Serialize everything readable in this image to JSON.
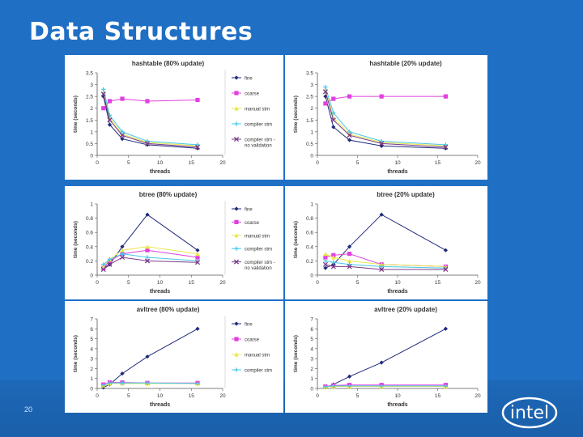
{
  "slide": {
    "title": "Data Structures",
    "number": "20",
    "logo_text": "intel"
  },
  "colors": {
    "background": "#1f6fc4",
    "fine": "#1f2a7a",
    "coarse": "#e040e0",
    "manual_stm": "#e8e84a",
    "compiler_stm": "#46c8e8",
    "compiler_stm_validation": "#7a3a8a"
  },
  "chart_data": [
    {
      "type": "line",
      "title": "hashtable (80% update)",
      "xlabel": "threads",
      "ylabel": "time (seconds)",
      "xlim": [
        0,
        20
      ],
      "ylim": [
        0,
        3.5
      ],
      "xticks": [
        0,
        5,
        10,
        15,
        20
      ],
      "yticks": [
        0,
        0.5,
        1,
        1.5,
        2,
        2.5,
        3,
        3.5
      ],
      "x": [
        1,
        2,
        4,
        8,
        16
      ],
      "legend": [
        "fine",
        "coarse",
        "manual stm",
        "compiler stm",
        "compiler stm - no validation"
      ],
      "series": [
        {
          "name": "fine",
          "values": [
            2.5,
            1.3,
            0.7,
            0.45,
            0.3
          ]
        },
        {
          "name": "coarse",
          "values": [
            2.0,
            2.3,
            2.4,
            2.3,
            2.35
          ]
        },
        {
          "name": "manual stm",
          "values": [
            2.7,
            1.6,
            0.9,
            0.55,
            0.4
          ]
        },
        {
          "name": "compiler stm",
          "values": [
            2.8,
            1.7,
            1.0,
            0.6,
            0.45
          ]
        },
        {
          "name": "compiler stm - no validation",
          "values": [
            2.6,
            1.5,
            0.85,
            0.5,
            0.35
          ]
        }
      ]
    },
    {
      "type": "line",
      "title": "hashtable (20% update)",
      "xlabel": "threads",
      "ylabel": "time (seconds)",
      "xlim": [
        0,
        20
      ],
      "ylim": [
        0,
        3.5
      ],
      "xticks": [
        0,
        5,
        10,
        15,
        20
      ],
      "yticks": [
        0,
        0.5,
        1,
        1.5,
        2,
        2.5,
        3,
        3.5
      ],
      "x": [
        1,
        2,
        4,
        8,
        16
      ],
      "legend": [],
      "series": [
        {
          "name": "fine",
          "values": [
            2.5,
            1.2,
            0.65,
            0.4,
            0.3
          ]
        },
        {
          "name": "coarse",
          "values": [
            2.2,
            2.4,
            2.5,
            2.5,
            2.5
          ]
        },
        {
          "name": "manual stm",
          "values": [
            2.8,
            1.6,
            0.9,
            0.55,
            0.4
          ]
        },
        {
          "name": "compiler stm",
          "values": [
            2.9,
            1.8,
            1.0,
            0.6,
            0.45
          ]
        },
        {
          "name": "compiler stm - no validation",
          "values": [
            2.7,
            1.5,
            0.85,
            0.5,
            0.35
          ]
        }
      ]
    },
    {
      "type": "line",
      "title": "btree (80% update)",
      "xlabel": "threads",
      "ylabel": "time (seconds)",
      "xlim": [
        0,
        20
      ],
      "ylim": [
        0,
        1
      ],
      "xticks": [
        0,
        5,
        10,
        15,
        20
      ],
      "yticks": [
        0,
        0.2,
        0.4,
        0.6,
        0.8,
        1
      ],
      "x": [
        1,
        2,
        4,
        8,
        16
      ],
      "legend": [
        "fine",
        "coarse",
        "manual stm",
        "compiler stm",
        "compiler stm - no validation"
      ],
      "series": [
        {
          "name": "fine",
          "values": [
            0.1,
            0.15,
            0.4,
            0.85,
            0.35
          ]
        },
        {
          "name": "coarse",
          "values": [
            0.1,
            0.2,
            0.3,
            0.35,
            0.25
          ]
        },
        {
          "name": "manual stm",
          "values": [
            0.12,
            0.22,
            0.35,
            0.4,
            0.3
          ]
        },
        {
          "name": "compiler stm",
          "values": [
            0.15,
            0.22,
            0.3,
            0.25,
            0.2
          ]
        },
        {
          "name": "compiler stm - no validation",
          "values": [
            0.08,
            0.15,
            0.25,
            0.2,
            0.18
          ]
        }
      ]
    },
    {
      "type": "line",
      "title": "btree (20% update)",
      "xlabel": "threads",
      "ylabel": "time (seconds)",
      "xlim": [
        0,
        20
      ],
      "ylim": [
        0,
        1
      ],
      "xticks": [
        0,
        5,
        10,
        15,
        20
      ],
      "yticks": [
        0,
        0.2,
        0.4,
        0.6,
        0.8,
        1
      ],
      "x": [
        1,
        2,
        4,
        8,
        16
      ],
      "legend": [],
      "series": [
        {
          "name": "fine",
          "values": [
            0.1,
            0.15,
            0.4,
            0.85,
            0.35
          ]
        },
        {
          "name": "coarse",
          "values": [
            0.25,
            0.28,
            0.3,
            0.15,
            0.12
          ]
        },
        {
          "name": "manual stm",
          "values": [
            0.3,
            0.25,
            0.2,
            0.15,
            0.12
          ]
        },
        {
          "name": "compiler stm",
          "values": [
            0.2,
            0.18,
            0.15,
            0.12,
            0.1
          ]
        },
        {
          "name": "compiler stm - no validation",
          "values": [
            0.15,
            0.12,
            0.12,
            0.08,
            0.08
          ]
        }
      ]
    },
    {
      "type": "line",
      "title": "avltree (80% update)",
      "xlabel": "threads",
      "ylabel": "time (seconds)",
      "xlim": [
        0,
        20
      ],
      "ylim": [
        0,
        7
      ],
      "xticks": [
        0,
        5,
        10,
        15,
        20
      ],
      "yticks": [
        0,
        1,
        2,
        3,
        4,
        5,
        6,
        7
      ],
      "x": [
        1,
        2,
        4,
        8,
        16
      ],
      "legend": [
        "fine",
        "coarse",
        "manual stm",
        "compiler stm"
      ],
      "series": [
        {
          "name": "fine",
          "values": [
            0.1,
            0.4,
            1.5,
            3.2,
            6.0
          ]
        },
        {
          "name": "coarse",
          "values": [
            0.4,
            0.6,
            0.6,
            0.55,
            0.55
          ]
        },
        {
          "name": "manual stm",
          "values": [
            0.3,
            0.5,
            0.5,
            0.5,
            0.5
          ]
        },
        {
          "name": "compiler stm",
          "values": [
            0.35,
            0.55,
            0.55,
            0.55,
            0.5
          ]
        }
      ]
    },
    {
      "type": "line",
      "title": "avltree (20% update)",
      "xlabel": "threads",
      "ylabel": "time (seconds)",
      "xlim": [
        0,
        20
      ],
      "ylim": [
        0,
        7
      ],
      "xticks": [
        0,
        5,
        10,
        15,
        20
      ],
      "yticks": [
        0,
        1,
        2,
        3,
        4,
        5,
        6,
        7
      ],
      "x": [
        1,
        2,
        4,
        8,
        16
      ],
      "legend": [],
      "series": [
        {
          "name": "fine",
          "values": [
            0.1,
            0.4,
            1.2,
            2.6,
            6.0
          ]
        },
        {
          "name": "coarse",
          "values": [
            0.2,
            0.3,
            0.35,
            0.35,
            0.35
          ]
        },
        {
          "name": "manual stm",
          "values": [
            0.15,
            0.2,
            0.2,
            0.2,
            0.2
          ]
        },
        {
          "name": "compiler stm",
          "values": [
            0.18,
            0.25,
            0.25,
            0.25,
            0.25
          ]
        }
      ]
    }
  ]
}
